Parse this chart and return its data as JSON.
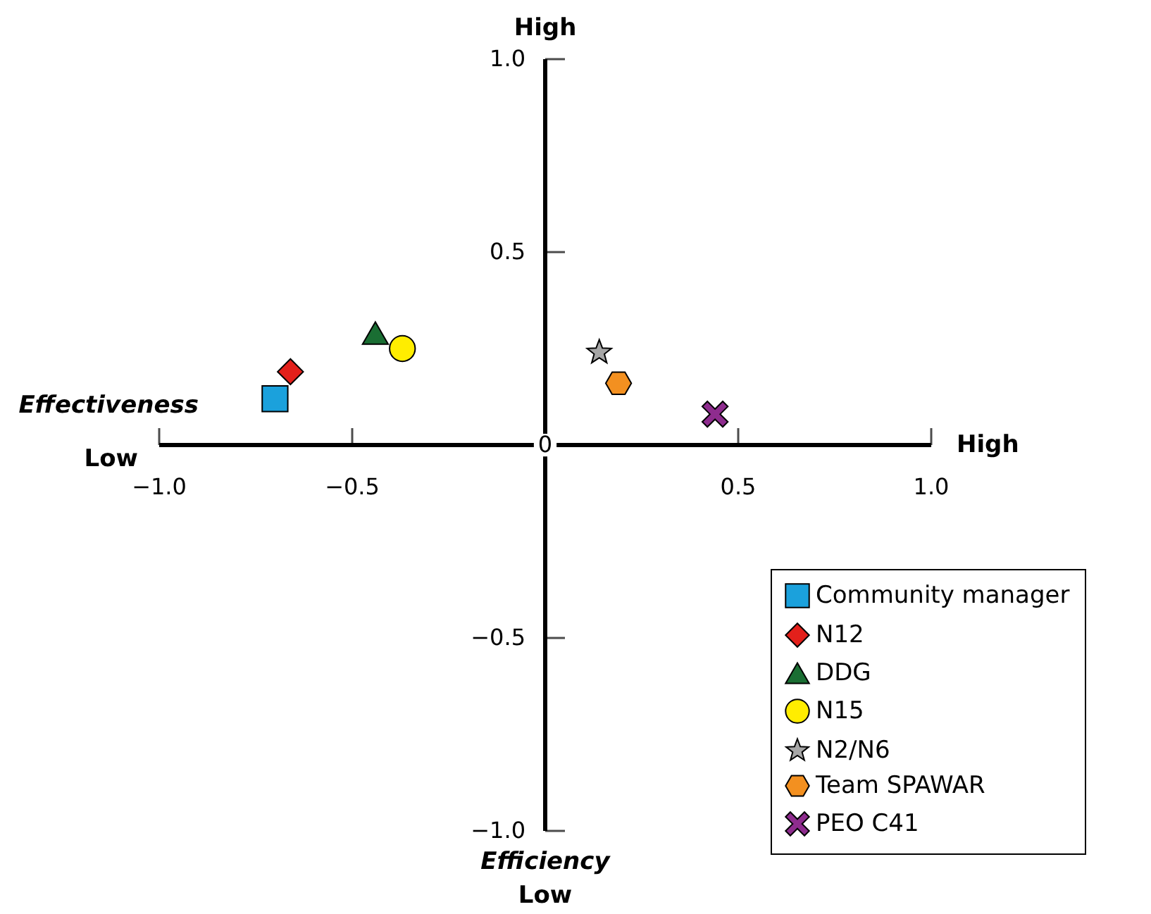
{
  "chart_data": {
    "type": "scatter",
    "xlabel": "Effectiveness",
    "annotations": [
      "Low",
      "High",
      "High",
      "Low",
      {
        "text": "0",
        "x": 0,
        "y": 0
      },
      "Efficiency"
    ],
    "xlim": [
      -1,
      1
    ],
    "ylim": [
      -1,
      1
    ],
    "xticks": [
      {
        "value": -1,
        "label": "−1.0"
      },
      {
        "value": -0.5,
        "label": "−0.5"
      },
      {
        "value": 0.5,
        "label": "0.5"
      },
      {
        "value": 1,
        "label": "1.0"
      }
    ],
    "yticks": [
      {
        "value": -1,
        "label": "−1.0"
      },
      {
        "value": -0.5,
        "label": "−0.5"
      },
      {
        "value": 0.5,
        "label": "0.5"
      },
      {
        "value": 1,
        "label": "1.0"
      }
    ],
    "grid": false,
    "legend": "bottom right",
    "series": [
      {
        "name": "Community manager",
        "color": "#1ba1dc",
        "marker": "square",
        "x": [
          -0.7
        ],
        "values": [
          0.12
        ]
      },
      {
        "name": "N12",
        "color": "#e3201b",
        "marker": "diamond",
        "x": [
          -0.66
        ],
        "values": [
          0.19
        ]
      },
      {
        "name": "DDG",
        "color": "#1a6e33",
        "marker": "triangle",
        "x": [
          -0.44
        ],
        "values": [
          0.29
        ]
      },
      {
        "name": "N15",
        "color": "#ffed00",
        "marker": "circle",
        "x": [
          -0.37
        ],
        "values": [
          0.25
        ]
      },
      {
        "name": "N2/N6",
        "color": "#a6a6a6",
        "marker": "star",
        "x": [
          0.14
        ],
        "values": [
          0.24
        ]
      },
      {
        "name": "Team SPAWAR",
        "color": "#f39020",
        "x": [
          0.19
        ],
        "values": [
          0.16
        ]
      },
      {
        "name": "PEO C41",
        "color": "#8e2c8e",
        "marker": "cross",
        "x": [
          0.44
        ],
        "values": [
          0.08
        ]
      }
    ]
  }
}
